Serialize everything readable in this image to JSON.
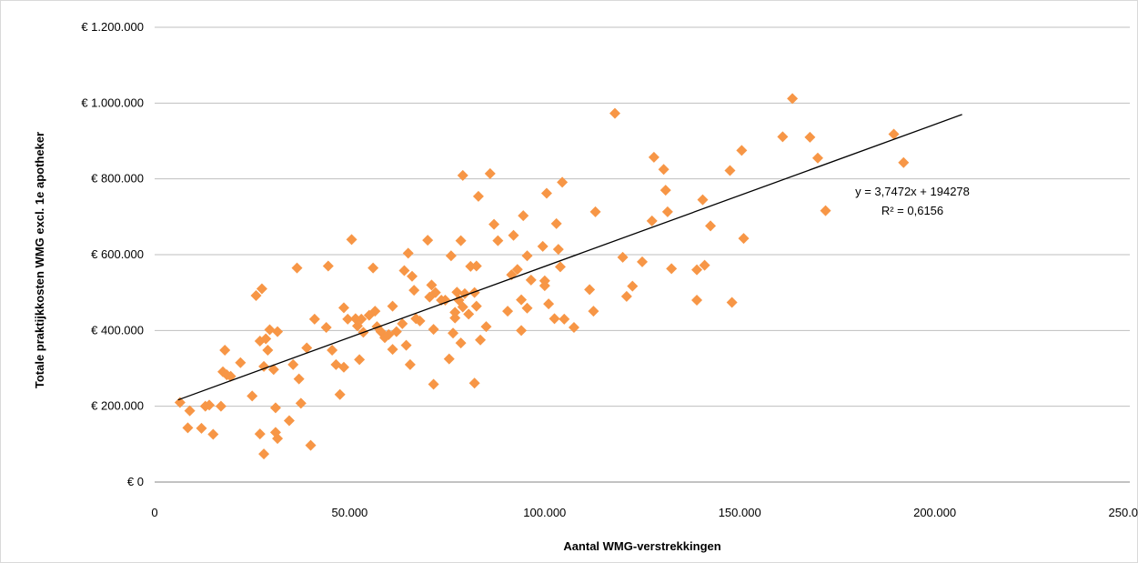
{
  "chart_data": {
    "type": "scatter",
    "title": "",
    "xlabel": "Aantal WMG-verstrekkingen",
    "ylabel": "Totale praktijkkosten WMG excl. 1e apotheker",
    "xlim": [
      0,
      250000
    ],
    "ylim": [
      0,
      1200000
    ],
    "x_ticks": [
      0,
      50000,
      100000,
      150000,
      200000,
      250000
    ],
    "x_tick_labels": [
      "0",
      "50.000",
      "100.000",
      "150.000",
      "200.000",
      "250.000"
    ],
    "y_ticks": [
      0,
      200000,
      400000,
      600000,
      800000,
      1000000,
      1200000
    ],
    "y_tick_labels": [
      "€ 0",
      "€ 200.000",
      "€ 400.000",
      "€ 600.000",
      "€ 800.000",
      "€ 1.000.000",
      "€ 1.200.000"
    ],
    "grid": "horizontal",
    "legend": "none",
    "marker_color": "#f79646",
    "trendline": {
      "slope": 3.7472,
      "intercept": 194278,
      "x_range": [
        6000,
        207000
      ],
      "equation_label": "y = 3,7472x + 194278",
      "r2_label": "R² = 0,6156"
    },
    "series": [
      {
        "points": [
          [
            6500,
            210000
          ],
          [
            8500,
            143000
          ],
          [
            9000,
            188000
          ],
          [
            12000,
            142000
          ],
          [
            13000,
            200000
          ],
          [
            14000,
            203000
          ],
          [
            15000,
            126000
          ],
          [
            17000,
            200000
          ],
          [
            17500,
            291000
          ],
          [
            18000,
            348000
          ],
          [
            18500,
            283000
          ],
          [
            19500,
            279000
          ],
          [
            22000,
            315000
          ],
          [
            25000,
            227000
          ],
          [
            26000,
            492000
          ],
          [
            27000,
            127000
          ],
          [
            27000,
            372000
          ],
          [
            27500,
            510000
          ],
          [
            28000,
            74000
          ],
          [
            28000,
            305000
          ],
          [
            28500,
            378000
          ],
          [
            29000,
            348000
          ],
          [
            29500,
            402000
          ],
          [
            30500,
            297000
          ],
          [
            31000,
            196000
          ],
          [
            31000,
            131000
          ],
          [
            31500,
            397000
          ],
          [
            31500,
            115000
          ],
          [
            34500,
            162000
          ],
          [
            35500,
            310000
          ],
          [
            36500,
            565000
          ],
          [
            37000,
            272000
          ],
          [
            37500,
            208000
          ],
          [
            39000,
            354000
          ],
          [
            40000,
            97000
          ],
          [
            41000,
            430000
          ],
          [
            44000,
            408000
          ],
          [
            44500,
            570000
          ],
          [
            45500,
            348000
          ],
          [
            46500,
            310000
          ],
          [
            47500,
            231000
          ],
          [
            48500,
            460000
          ],
          [
            49500,
            430000
          ],
          [
            48500,
            303000
          ],
          [
            50500,
            640000
          ],
          [
            51500,
            431000
          ],
          [
            52000,
            412000
          ],
          [
            52500,
            323000
          ],
          [
            53000,
            430000
          ],
          [
            53500,
            395000
          ],
          [
            55000,
            440000
          ],
          [
            56000,
            565000
          ],
          [
            56500,
            451000
          ],
          [
            57000,
            410000
          ],
          [
            58000,
            397000
          ],
          [
            59000,
            381000
          ],
          [
            60000,
            389000
          ],
          [
            61000,
            464000
          ],
          [
            61000,
            350000
          ],
          [
            62000,
            397000
          ],
          [
            63500,
            418000
          ],
          [
            64000,
            558000
          ],
          [
            64500,
            361000
          ],
          [
            65000,
            604000
          ],
          [
            65500,
            310000
          ],
          [
            66000,
            543000
          ],
          [
            66500,
            506000
          ],
          [
            67000,
            431000
          ],
          [
            68000,
            425000
          ],
          [
            70000,
            638000
          ],
          [
            70500,
            488000
          ],
          [
            71000,
            520000
          ],
          [
            71500,
            258000
          ],
          [
            71500,
            403000
          ],
          [
            72000,
            500000
          ],
          [
            73500,
            480000
          ],
          [
            74500,
            480000
          ],
          [
            75500,
            325000
          ],
          [
            76000,
            597000
          ],
          [
            76500,
            393000
          ],
          [
            77000,
            448000
          ],
          [
            77000,
            433000
          ],
          [
            77500,
            501000
          ],
          [
            78000,
            480000
          ],
          [
            78500,
            367000
          ],
          [
            78500,
            637000
          ],
          [
            79000,
            462000
          ],
          [
            79000,
            809000
          ],
          [
            79500,
            497000
          ],
          [
            80500,
            443000
          ],
          [
            81000,
            569000
          ],
          [
            82000,
            261000
          ],
          [
            82000,
            500000
          ],
          [
            82500,
            570000
          ],
          [
            82500,
            464000
          ],
          [
            83000,
            754000
          ],
          [
            83500,
            375000
          ],
          [
            85000,
            410000
          ],
          [
            86000,
            814000
          ],
          [
            87000,
            680000
          ],
          [
            88000,
            637000
          ],
          [
            90500,
            451000
          ],
          [
            91500,
            547000
          ],
          [
            92000,
            651000
          ],
          [
            93000,
            561000
          ],
          [
            94000,
            481000
          ],
          [
            94000,
            400000
          ],
          [
            94500,
            703000
          ],
          [
            95500,
            459000
          ],
          [
            95500,
            597000
          ],
          [
            96500,
            533000
          ],
          [
            99500,
            622000
          ],
          [
            100000,
            518000
          ],
          [
            100000,
            531000
          ],
          [
            100500,
            762000
          ],
          [
            101000,
            470000
          ],
          [
            102500,
            431000
          ],
          [
            103000,
            682000
          ],
          [
            103500,
            614000
          ],
          [
            104000,
            568000
          ],
          [
            104500,
            791000
          ],
          [
            105000,
            430000
          ],
          [
            107500,
            408000
          ],
          [
            111500,
            508000
          ],
          [
            112500,
            451000
          ],
          [
            113000,
            713000
          ],
          [
            118000,
            973000
          ],
          [
            120000,
            593000
          ],
          [
            121000,
            490000
          ],
          [
            122500,
            517000
          ],
          [
            125000,
            581000
          ],
          [
            127500,
            689000
          ],
          [
            128000,
            857000
          ],
          [
            130500,
            825000
          ],
          [
            131000,
            770000
          ],
          [
            131500,
            713000
          ],
          [
            132500,
            563000
          ],
          [
            139000,
            480000
          ],
          [
            139000,
            560000
          ],
          [
            140500,
            745000
          ],
          [
            141000,
            572000
          ],
          [
            142500,
            676000
          ],
          [
            147500,
            822000
          ],
          [
            148000,
            474000
          ],
          [
            150500,
            875000
          ],
          [
            151000,
            643000
          ],
          [
            161000,
            911000
          ],
          [
            163500,
            1012000
          ],
          [
            168000,
            910000
          ],
          [
            170000,
            855000
          ],
          [
            172000,
            716000
          ],
          [
            189500,
            918000
          ],
          [
            192000,
            843000
          ]
        ]
      }
    ]
  }
}
